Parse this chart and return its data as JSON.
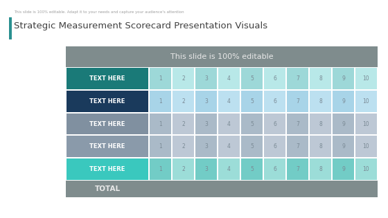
{
  "title": "Strategic Measurement Scorecard Presentation Visuals",
  "subtitle": "This slide is 100% editable",
  "top_caption": "This slide is 100% editable. Adapt it to your needs and capture your audience's attention",
  "header_bg": "#7f8c8d",
  "total_bg": "#7f8c8d",
  "row_label_colors": [
    "#1a7a78",
    "#1a3a5c",
    "#8090a0",
    "#8a9aaa",
    "#3ac8be"
  ],
  "row_label_text_color": "#ffffff",
  "row_label": "TEXT HERE",
  "num_rows": 5,
  "cell_colors_row0": [
    "#9dd8d8",
    "#b8e8e8",
    "#9dd8d8",
    "#b8e8e8",
    "#9dd8d8",
    "#b8e8e8",
    "#9dd8d8",
    "#b8e8e8",
    "#9dd8d8",
    "#b8e8e8"
  ],
  "cell_colors_row1": [
    "#a8d4e8",
    "#bce0f0",
    "#a8d4e8",
    "#bce0f0",
    "#a8d4e8",
    "#bce0f0",
    "#a8d4e8",
    "#bce0f0",
    "#a8d4e8",
    "#bce0f0"
  ],
  "cell_colors_row2": [
    "#aabac8",
    "#bdc8d5",
    "#aabac8",
    "#bdc8d5",
    "#aabac8",
    "#bdc8d5",
    "#aabac8",
    "#bdc8d5",
    "#aabac8",
    "#bdc8d5"
  ],
  "cell_colors_row3": [
    "#aabac8",
    "#bdc8d5",
    "#aabac8",
    "#bdc8d5",
    "#aabac8",
    "#bdc8d5",
    "#aabac8",
    "#bdc8d5",
    "#aabac8",
    "#bdc8d5"
  ],
  "cell_colors_row4": [
    "#72ccc6",
    "#9cddd8",
    "#72ccc6",
    "#9cddd8",
    "#72ccc6",
    "#9cddd8",
    "#72ccc6",
    "#9cddd8",
    "#72ccc6",
    "#9cddd8"
  ],
  "cell_text_color": "#7a8a95",
  "bg_color": "#ffffff",
  "accent_bar_color": "#2a9090",
  "title_color": "#404040",
  "caption_color": "#a0a0a0"
}
